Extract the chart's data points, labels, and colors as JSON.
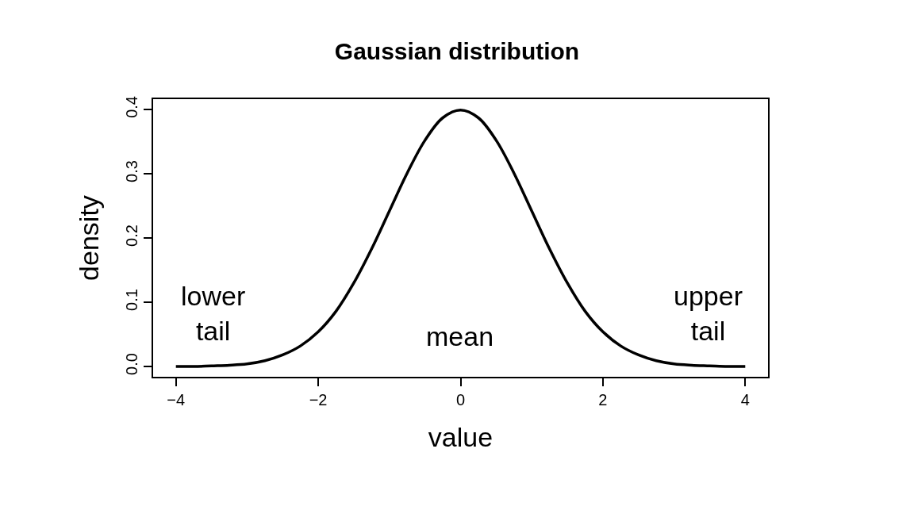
{
  "chart_data": {
    "type": "line",
    "title": "Gaussian distribution",
    "xlabel": "value",
    "ylabel": "density",
    "x": [
      -4,
      -3.75,
      -3.5,
      -3.25,
      -3,
      -2.75,
      -2.5,
      -2.25,
      -2,
      -1.75,
      -1.5,
      -1.25,
      -1,
      -0.75,
      -0.5,
      -0.25,
      0,
      0.25,
      0.5,
      0.75,
      1,
      1.25,
      1.5,
      1.75,
      2,
      2.25,
      2.5,
      2.75,
      3,
      3.25,
      3.5,
      3.75,
      4
    ],
    "series": [
      {
        "color": "#000000",
        "values": [
          0.0,
          0.0,
          0.001,
          0.002,
          0.004,
          0.009,
          0.018,
          0.032,
          0.054,
          0.086,
          0.13,
          0.183,
          0.242,
          0.301,
          0.352,
          0.387,
          0.399,
          0.387,
          0.352,
          0.301,
          0.242,
          0.183,
          0.13,
          0.086,
          0.054,
          0.032,
          0.018,
          0.009,
          0.004,
          0.002,
          0.001,
          0.0,
          0.0
        ]
      }
    ],
    "xlim": [
      -4.32,
      4.32
    ],
    "ylim": [
      -0.016,
      0.416
    ],
    "xticks": [
      {
        "value": -4,
        "label": "−4"
      },
      {
        "value": -2,
        "label": "−2"
      },
      0,
      2,
      4
    ],
    "yticks": [
      {
        "value": 0,
        "label": "0.0"
      },
      0.1,
      0.2,
      0.3,
      0.4
    ],
    "annotations": [
      "lower\ntail",
      "mean",
      "upper\ntail"
    ],
    "marker": "none",
    "line_style": "solid"
  }
}
